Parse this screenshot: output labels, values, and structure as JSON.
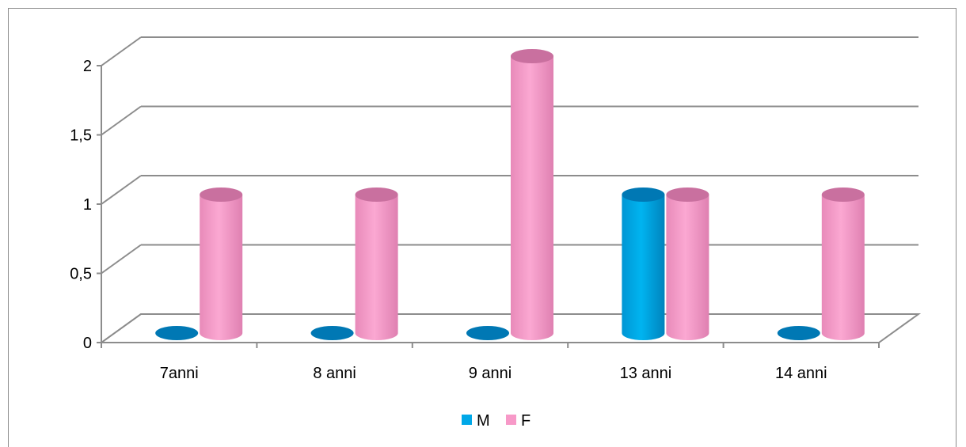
{
  "chart_data": {
    "type": "bar",
    "style": "3d-cylinder",
    "categories": [
      "7anni",
      "8 anni",
      "9 anni",
      "13 anni",
      "14 anni"
    ],
    "series": [
      {
        "name": "M",
        "values": [
          0,
          0,
          0,
          1,
          0
        ],
        "color": "#00a8e8"
      },
      {
        "name": "F",
        "values": [
          1,
          1,
          2,
          1,
          1
        ],
        "color": "#f799c8"
      }
    ],
    "y_ticks": [
      "0",
      "0,5",
      "1",
      "1,5",
      "2"
    ],
    "ylim": [
      0,
      2
    ],
    "grid": true,
    "legend": "bottom"
  }
}
